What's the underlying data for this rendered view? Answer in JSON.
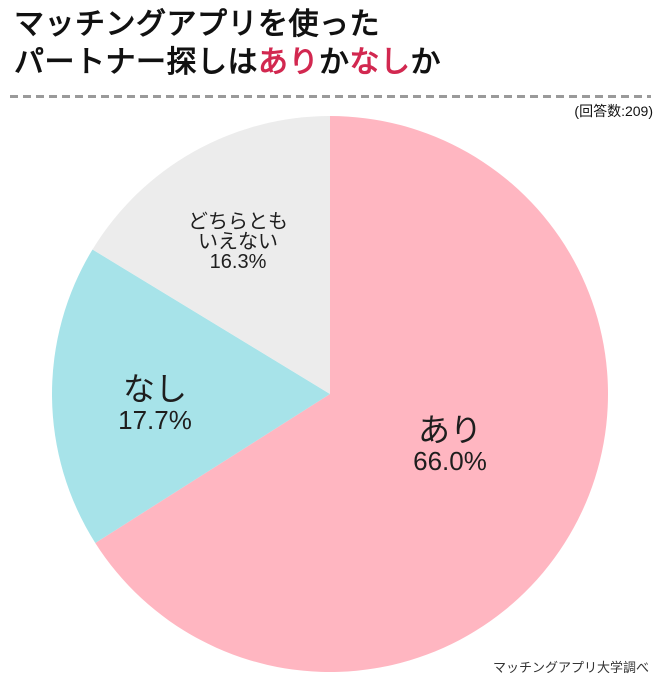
{
  "colors": {
    "accent": "#d22850",
    "text": "#111111",
    "divider": "#9a9a9a",
    "footer_text": "#333333",
    "background": "#ffffff"
  },
  "header": {
    "title_line1": "マッチングアプリを使った",
    "title_line2_segments": [
      {
        "text": "パートナー探しは",
        "accent": false
      },
      {
        "text": "あり",
        "accent": true
      },
      {
        "text": "か",
        "accent": false
      },
      {
        "text": "なし",
        "accent": true
      },
      {
        "text": "か",
        "accent": false
      }
    ],
    "respondents_note": "(回答数:209)"
  },
  "chart_data": {
    "type": "pie",
    "title": "マッチングアプリを使ったパートナー探しはありかなしか",
    "categories": [
      "あり",
      "なし",
      "どちらともいえない"
    ],
    "values": [
      66.0,
      17.7,
      16.3
    ],
    "unit": "%",
    "colors": [
      "#ffb6c1",
      "#a7e3e9",
      "#ececec"
    ],
    "start_angle_deg": 0,
    "direction": "clockwise",
    "respondents_label": "回答数",
    "respondents": 209,
    "legend_position": "none",
    "labels": [
      {
        "name": "あり",
        "pct": "66.0%"
      },
      {
        "name": "なし",
        "pct": "17.7%"
      },
      {
        "name_line1": "どちらとも",
        "name_line2": "いえない",
        "pct": "16.3%"
      }
    ]
  },
  "footer": {
    "source": "マッチングアプリ大学調べ"
  }
}
